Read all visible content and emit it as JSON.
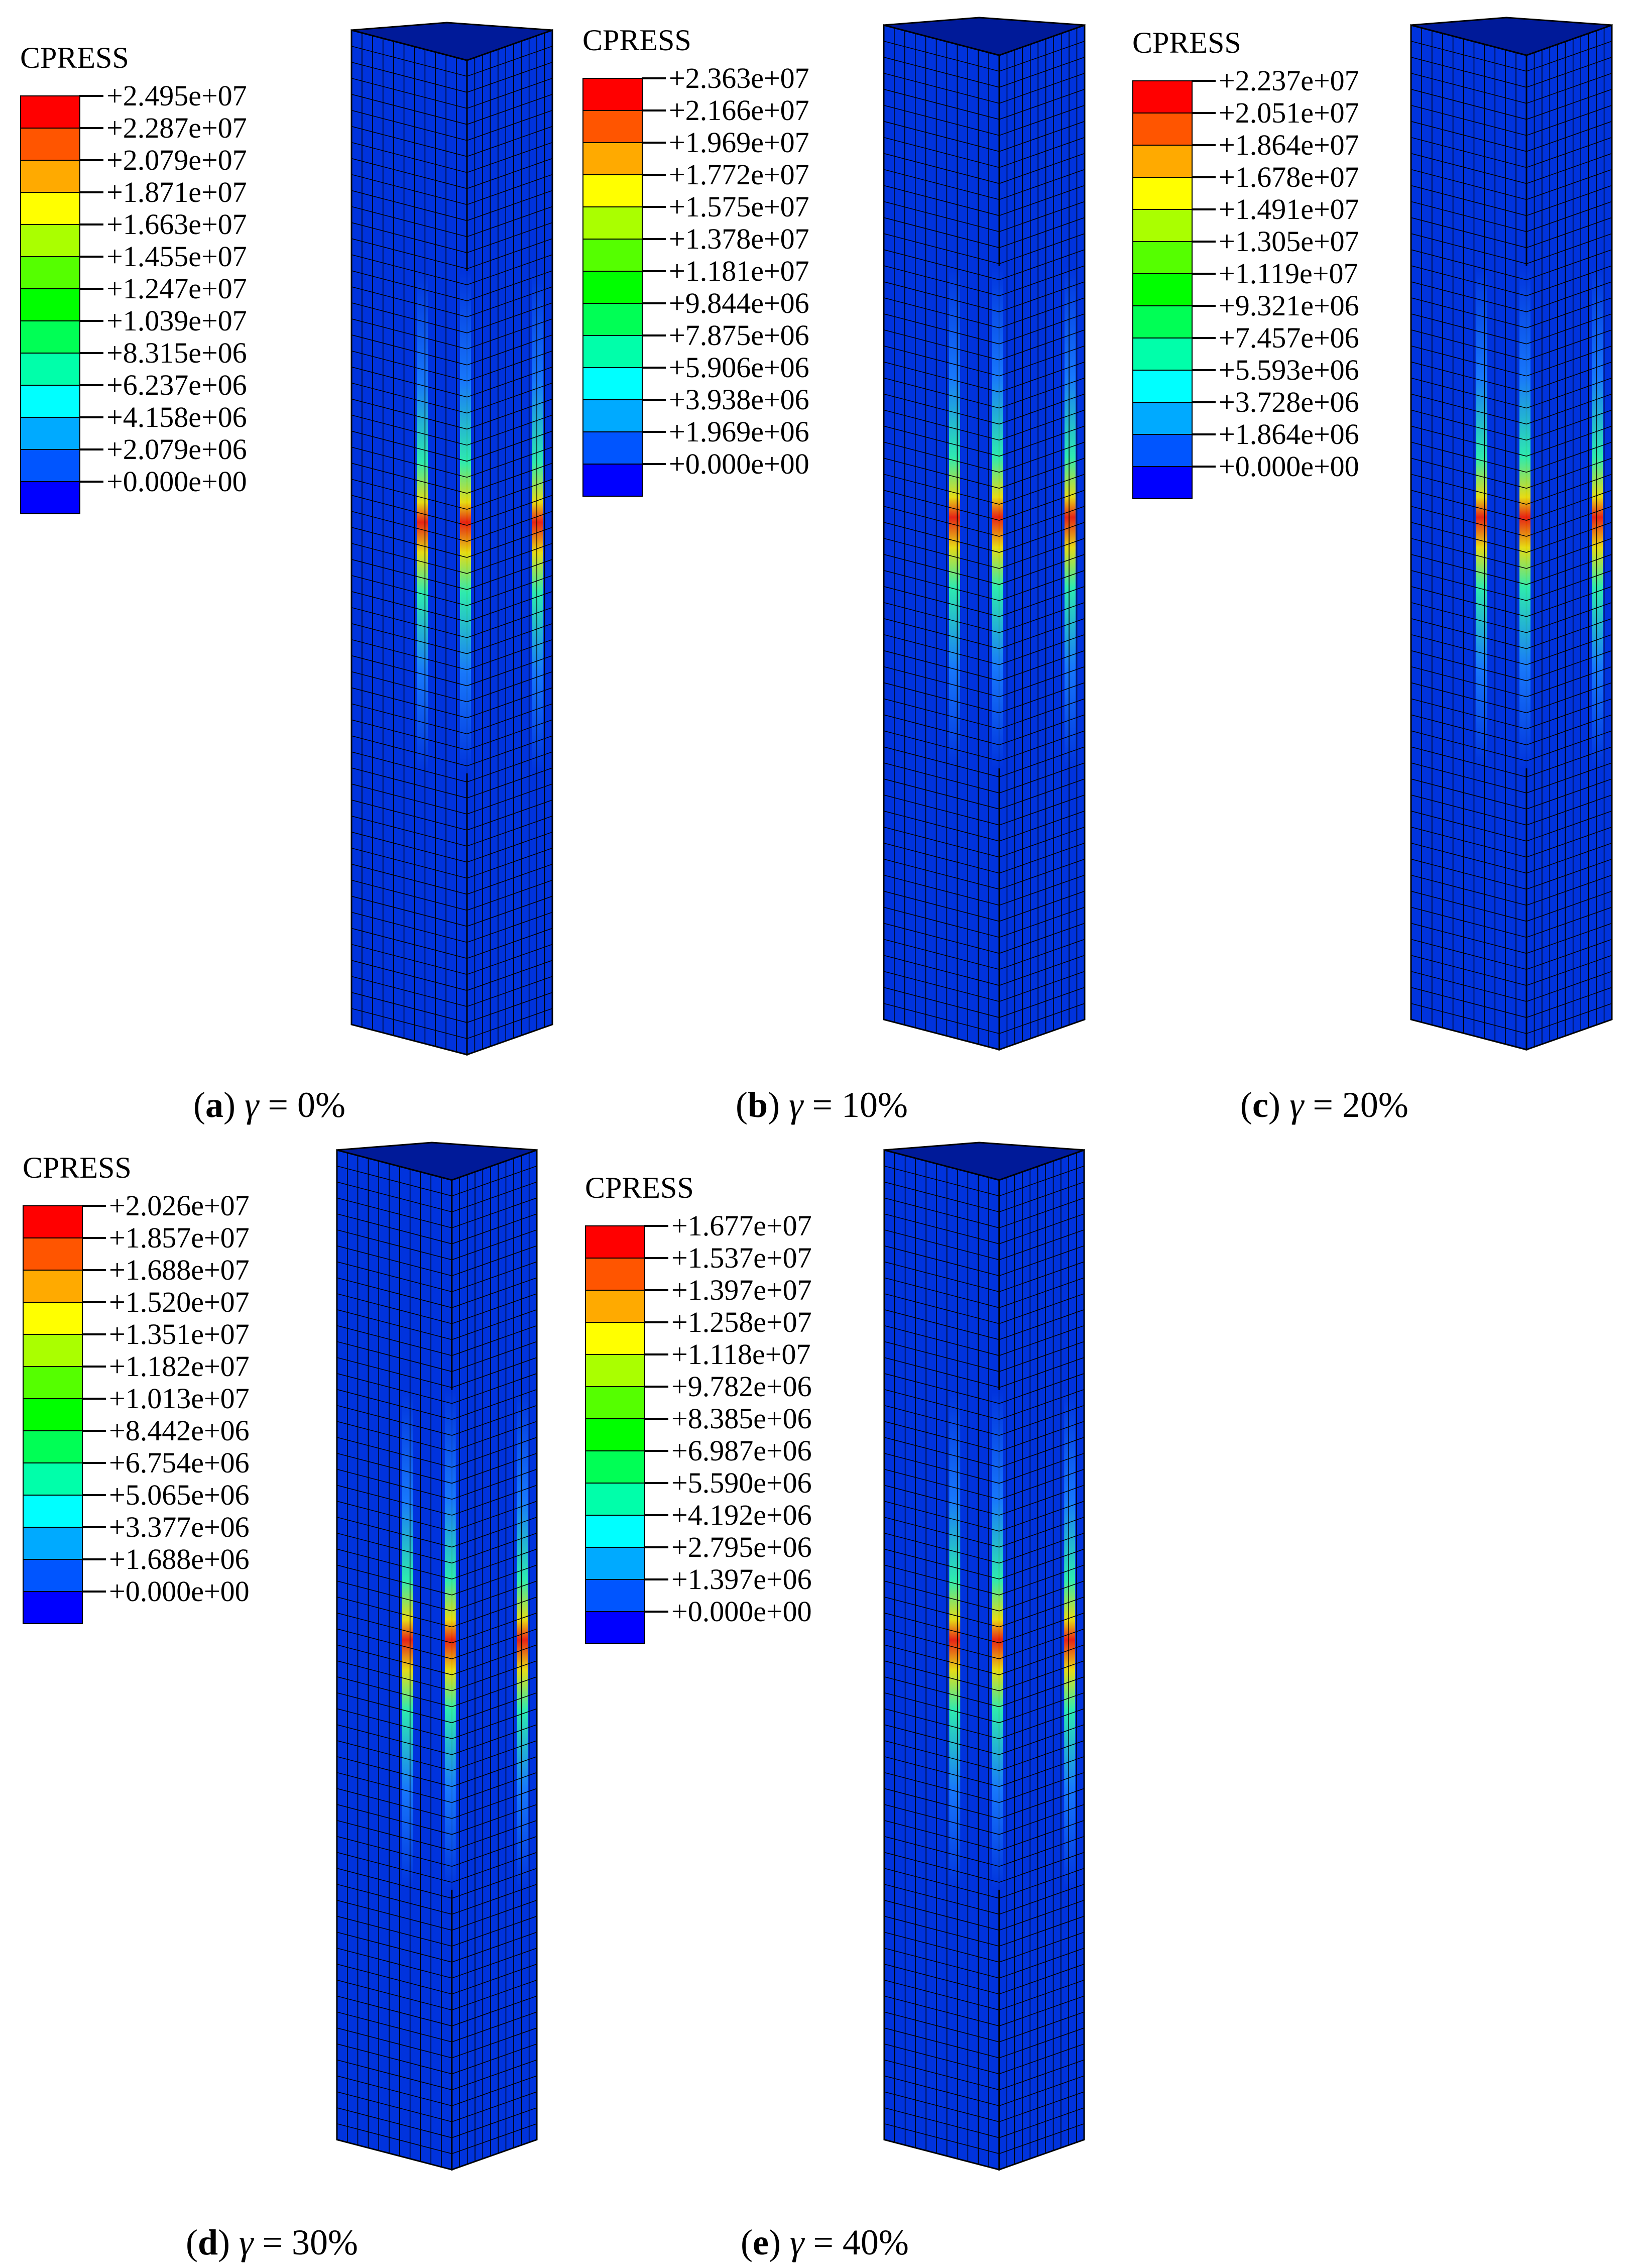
{
  "legend_colors": [
    "#ff0000",
    "#ff5500",
    "#ffaa00",
    "#ffff00",
    "#aaff00",
    "#55ff00",
    "#00ff00",
    "#00ff55",
    "#00ffaa",
    "#00ffff",
    "#00aaff",
    "#0055ff",
    "#0000ff"
  ],
  "mesh_color": "#0033dd",
  "panels": [
    {
      "id": "a",
      "legend_title": "CPRESS",
      "values": [
        "+2.495e+07",
        "+2.287e+07",
        "+2.079e+07",
        "+1.871e+07",
        "+1.663e+07",
        "+1.455e+07",
        "+1.247e+07",
        "+1.039e+07",
        "+8.315e+06",
        "+6.237e+06",
        "+4.158e+06",
        "+2.079e+06",
        "+0.000e+00"
      ],
      "caption_letter": "a",
      "caption_rest": " = 0%"
    },
    {
      "id": "b",
      "legend_title": "CPRESS",
      "values": [
        "+2.363e+07",
        "+2.166e+07",
        "+1.969e+07",
        "+1.772e+07",
        "+1.575e+07",
        "+1.378e+07",
        "+1.181e+07",
        "+9.844e+06",
        "+7.875e+06",
        "+5.906e+06",
        "+3.938e+06",
        "+1.969e+06",
        "+0.000e+00"
      ],
      "caption_letter": "b",
      "caption_rest": " = 10%"
    },
    {
      "id": "c",
      "legend_title": "CPRESS",
      "values": [
        "+2.237e+07",
        "+2.051e+07",
        "+1.864e+07",
        "+1.678e+07",
        "+1.491e+07",
        "+1.305e+07",
        "+1.119e+07",
        "+9.321e+06",
        "+7.457e+06",
        "+5.593e+06",
        "+3.728e+06",
        "+1.864e+06",
        "+0.000e+00"
      ],
      "caption_letter": "c",
      "caption_rest": " = 20%"
    },
    {
      "id": "d",
      "legend_title": "CPRESS",
      "values": [
        "+2.026e+07",
        "+1.857e+07",
        "+1.688e+07",
        "+1.520e+07",
        "+1.351e+07",
        "+1.182e+07",
        "+1.013e+07",
        "+8.442e+06",
        "+6.754e+06",
        "+5.065e+06",
        "+3.377e+06",
        "+1.688e+06",
        "+0.000e+00"
      ],
      "caption_letter": "d",
      "caption_rest": " = 30%"
    },
    {
      "id": "e",
      "legend_title": "CPRESS",
      "values": [
        "+1.677e+07",
        "+1.537e+07",
        "+1.397e+07",
        "+1.258e+07",
        "+1.118e+07",
        "+9.782e+06",
        "+8.385e+06",
        "+6.987e+06",
        "+5.590e+06",
        "+4.192e+06",
        "+2.795e+06",
        "+1.397e+06",
        "+0.000e+00"
      ],
      "caption_letter": "e",
      "caption_rest": " = 40%"
    }
  ],
  "gamma_symbol": "γ"
}
